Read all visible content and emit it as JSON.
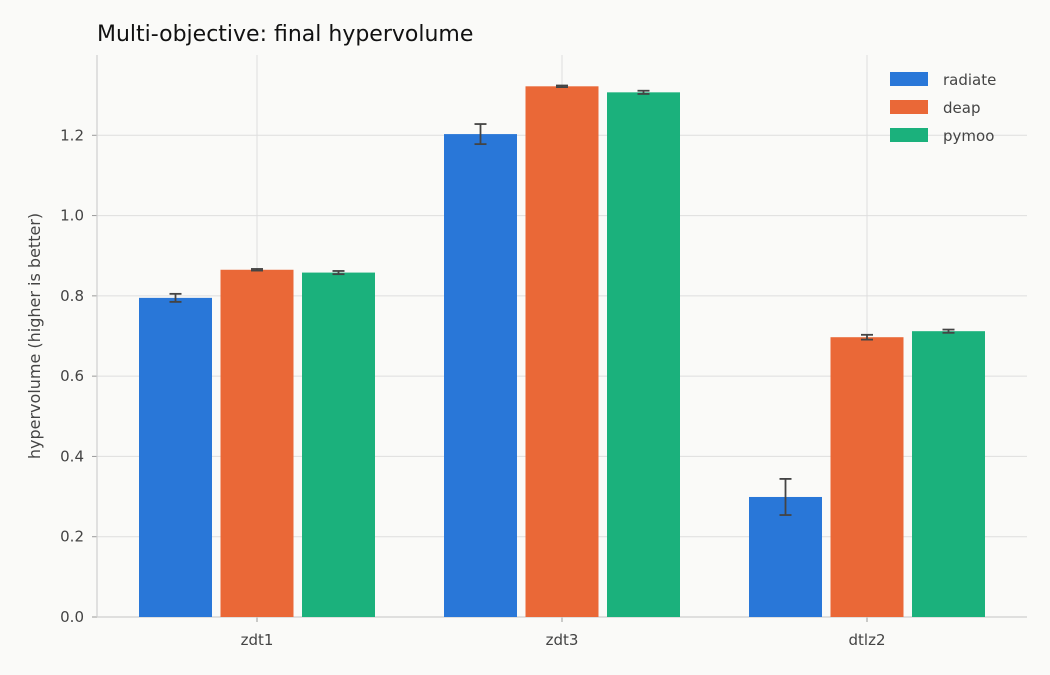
{
  "chart_data": {
    "type": "bar",
    "title": "Multi-objective: final hypervolume",
    "xlabel": "",
    "ylabel": "hypervolume (higher is better)",
    "categories": [
      "zdt1",
      "zdt3",
      "dtlz2"
    ],
    "ylim": [
      0,
      1.4
    ],
    "yticks": [
      "0.0",
      "0.2",
      "0.4",
      "0.6",
      "0.8",
      "1.0",
      "1.2"
    ],
    "grid": true,
    "legend": "top-right",
    "series": [
      {
        "name": "radiate",
        "color": "#2977d8",
        "values": [
          0.795,
          1.203,
          0.299
        ],
        "errors": [
          0.01,
          0.025,
          0.045
        ]
      },
      {
        "name": "deap",
        "color": "#ea6837",
        "values": [
          0.865,
          1.322,
          0.697
        ],
        "errors": [
          0.002,
          0.002,
          0.006
        ]
      },
      {
        "name": "pymoo",
        "color": "#1bb17c",
        "values": [
          0.858,
          1.307,
          0.712
        ],
        "errors": [
          0.004,
          0.004,
          0.004
        ]
      }
    ]
  }
}
